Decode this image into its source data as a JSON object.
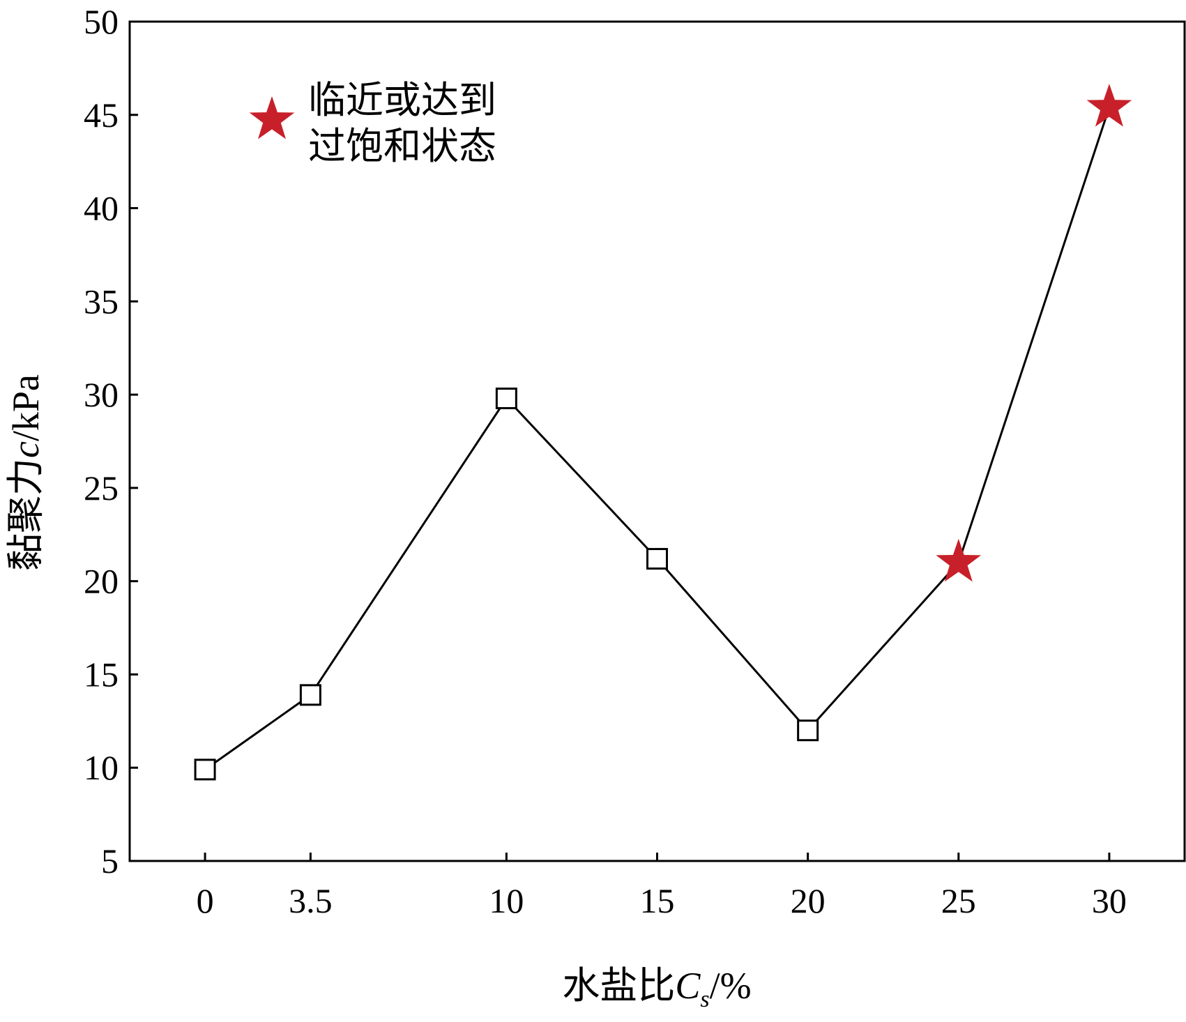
{
  "chart_data": {
    "type": "line",
    "title": "",
    "xlabel": "水盐比",
    "xlabel_symbol": "C",
    "xlabel_subscript": "s",
    "xlabel_unit": "/%",
    "ylabel": "黏聚力",
    "ylabel_symbol": "c",
    "ylabel_unit": "/kPa",
    "x_tick_labels": [
      "0",
      "3.5",
      "10",
      "15",
      "20",
      "25",
      "30"
    ],
    "y_tick_labels": [
      "5",
      "10",
      "15",
      "20",
      "25",
      "30",
      "35",
      "40",
      "45",
      "50"
    ],
    "xlim": [
      -2.5,
      32.5
    ],
    "ylim": [
      5,
      50
    ],
    "grid": false,
    "legend_position": "top-left",
    "series": [
      {
        "x": [
          0,
          3.5,
          10,
          15,
          20,
          25,
          30
        ],
        "y": [
          9.9,
          13.9,
          29.8,
          21.2,
          12.0,
          21.0,
          45.4
        ],
        "line_color": "#000000",
        "marker": "open-square",
        "highlight_indices": [
          5,
          6
        ],
        "highlight_marker": "star",
        "highlight_color": "#c8202a"
      }
    ],
    "legend": [
      {
        "marker": "star",
        "color": "#c8202a",
        "lines": [
          "临近或达到",
          "过饱和状态"
        ]
      }
    ]
  }
}
